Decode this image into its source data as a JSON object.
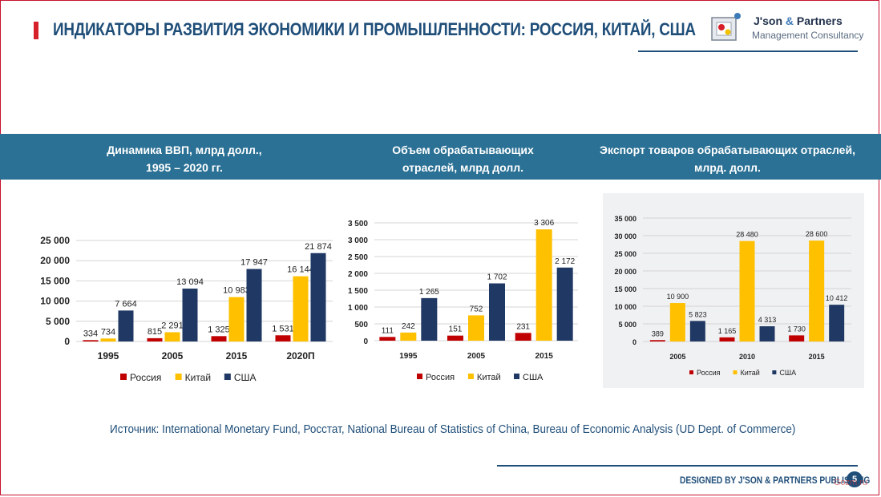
{
  "header": {
    "title": "ИНДИКАТОРЫ РАЗВИТИЯ ЭКОНОМИКИ И ПРОМЫШЛЕННОСТИ: РОССИЯ, КИТАЙ, США",
    "logo_name": "J'son",
    "logo_amp": "&",
    "logo_name_rest": "Partners",
    "logo_sub": "Management Consultancy"
  },
  "panels": [
    {
      "title_line1": "Динамика ВВП, млрд долл.,",
      "title_line2": "1995 – 2020 гг."
    },
    {
      "title_line1": "Объем обрабатывающих",
      "title_line2": "отраслей, млрд долл."
    },
    {
      "title_line1": "Экспорт товаров обрабатывающих отраслей,",
      "title_line2": "млрд. долл."
    }
  ],
  "colors": {
    "russia": "#c00000",
    "china": "#ffc000",
    "usa": "#1f3864",
    "accent": "#2b7195"
  },
  "chart_data": [
    {
      "type": "bar",
      "categories": [
        "1995",
        "2005",
        "2015",
        "2020П"
      ],
      "series": [
        {
          "name": "Россия",
          "values": [
            334,
            815,
            1325,
            1531
          ],
          "labels": [
            "334",
            "815",
            "1 325",
            "1 531"
          ]
        },
        {
          "name": "Китай",
          "values": [
            734,
            2291,
            10983,
            16144
          ],
          "labels": [
            "734",
            "2 291",
            "10 983",
            "16 144"
          ]
        },
        {
          "name": "США",
          "values": [
            7664,
            13094,
            17947,
            21874
          ],
          "labels": [
            "7 664",
            "13 094",
            "17 947",
            "21 874"
          ]
        }
      ],
      "ylim": [
        0,
        25000
      ],
      "yticks": [
        0,
        5000,
        10000,
        15000,
        20000,
        25000
      ],
      "ytick_labels": [
        "0",
        "5 000",
        "10 000",
        "15 000",
        "20 000",
        "25 000"
      ],
      "legend": "bottom"
    },
    {
      "type": "bar",
      "categories": [
        "1995",
        "2005",
        "2015"
      ],
      "series": [
        {
          "name": "Россия",
          "values": [
            111,
            151,
            231
          ],
          "labels": [
            "111",
            "151",
            "231"
          ]
        },
        {
          "name": "Китай",
          "values": [
            242,
            752,
            3306
          ],
          "labels": [
            "242",
            "752",
            "3 306"
          ]
        },
        {
          "name": "США",
          "values": [
            1265,
            1702,
            2172
          ],
          "labels": [
            "1 265",
            "1 702",
            "2 172"
          ]
        }
      ],
      "ylim": [
        0,
        3500
      ],
      "yticks": [
        0,
        500,
        1000,
        1500,
        2000,
        2500,
        3000,
        3500
      ],
      "ytick_labels": [
        "0",
        "500",
        "1 000",
        "1 500",
        "2 000",
        "2 500",
        "3 000",
        "3 500"
      ],
      "legend": "bottom"
    },
    {
      "type": "bar",
      "categories": [
        "2005",
        "2010",
        "2015"
      ],
      "series": [
        {
          "name": "Россия",
          "values": [
            389,
            1165,
            1730
          ],
          "labels": [
            "389",
            "1 165",
            "1 730"
          ]
        },
        {
          "name": "Китай",
          "values": [
            10900,
            28480,
            28600
          ],
          "labels": [
            "10 900",
            "28 480",
            "28 600"
          ]
        },
        {
          "name": "США",
          "values": [
            5823,
            4313,
            10412
          ],
          "labels": [
            "5 823",
            "4 313",
            "10 412"
          ]
        }
      ],
      "ylim": [
        0,
        35000
      ],
      "yticks": [
        0,
        5000,
        10000,
        15000,
        20000,
        25000,
        30000,
        35000
      ],
      "ytick_labels": [
        "0",
        "5 000",
        "10 000",
        "15 000",
        "20 000",
        "25 000",
        "30 000",
        "35 000"
      ],
      "legend": "bottom"
    }
  ],
  "source": "Источник:  International Monetary Fund, Росстат, National Bureau of Statistics of China, Bureau of Economic Analysis (UD Dept. of Commerce)",
  "footer": {
    "text": "DESIGNED BY J'SON & PARTNERS PUBLISHING",
    "page": "5"
  },
  "watermark": "Gozm.ru"
}
